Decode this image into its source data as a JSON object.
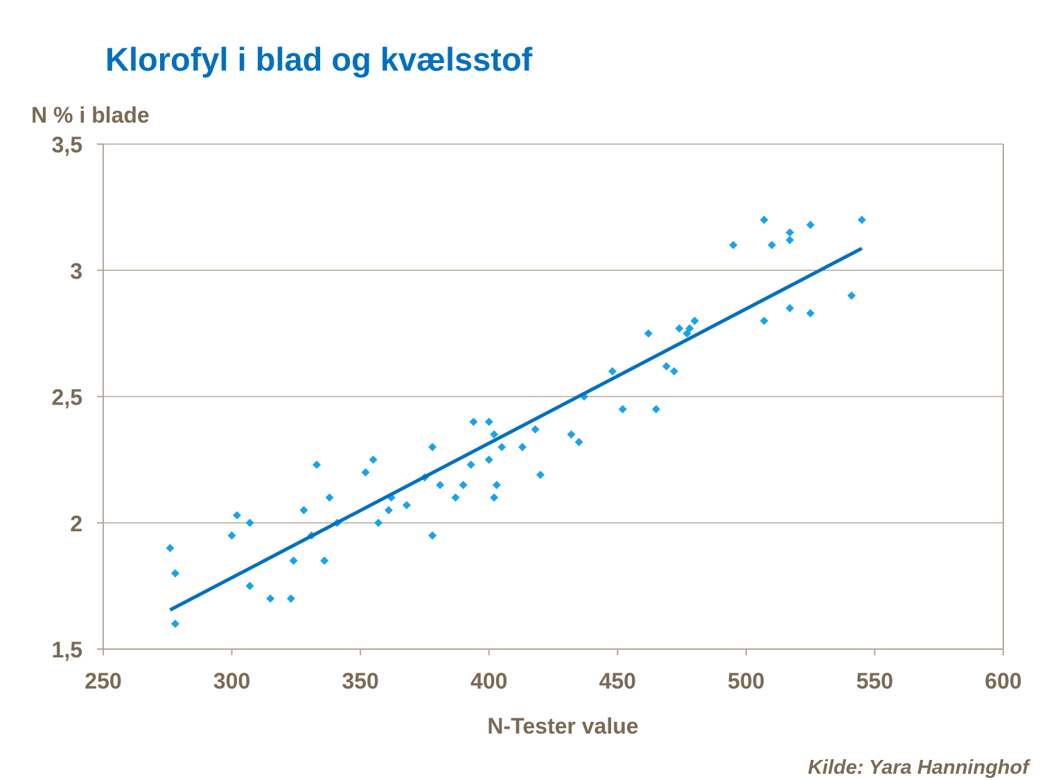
{
  "chart_data": {
    "type": "scatter",
    "title": "Klorofyl i blad og kvælsstof",
    "xlabel": "N-Tester value",
    "ylabel": "N % i blade",
    "source": "Kilde:  Yara Hanninghof",
    "xlim": [
      250,
      600
    ],
    "ylim": [
      1.5,
      3.5
    ],
    "xticks": [
      250,
      300,
      350,
      400,
      450,
      500,
      550,
      600
    ],
    "xtick_labels": [
      "250",
      "300",
      "350",
      "400",
      "450",
      "500",
      "550",
      "600"
    ],
    "yticks": [
      1.5,
      2,
      2.5,
      3,
      3.5
    ],
    "ytick_labels": [
      "1,5",
      "2",
      "2,5",
      "3",
      "3,5"
    ],
    "grid": "horizontal",
    "colors": {
      "points": "#1aa3e8",
      "trendline": "#0070c0",
      "axis": "#b3a898",
      "title": "#0070c0",
      "text": "#7a6a55"
    },
    "points": [
      [
        276,
        1.9
      ],
      [
        278,
        1.8
      ],
      [
        278,
        1.6
      ],
      [
        300,
        1.95
      ],
      [
        302,
        2.03
      ],
      [
        307,
        2.0
      ],
      [
        307,
        1.75
      ],
      [
        315,
        1.7
      ],
      [
        323,
        1.7
      ],
      [
        324,
        1.85
      ],
      [
        328,
        2.05
      ],
      [
        331,
        1.95
      ],
      [
        333,
        2.23
      ],
      [
        336,
        1.85
      ],
      [
        338,
        2.1
      ],
      [
        341,
        2.0
      ],
      [
        352,
        2.2
      ],
      [
        355,
        2.25
      ],
      [
        357,
        2.0
      ],
      [
        361,
        2.05
      ],
      [
        362,
        2.1
      ],
      [
        368,
        2.07
      ],
      [
        375,
        2.18
      ],
      [
        378,
        2.3
      ],
      [
        378,
        1.95
      ],
      [
        381,
        2.15
      ],
      [
        387,
        2.1
      ],
      [
        390,
        2.15
      ],
      [
        393,
        2.23
      ],
      [
        394,
        2.4
      ],
      [
        400,
        2.4
      ],
      [
        400,
        2.25
      ],
      [
        402,
        2.35
      ],
      [
        402,
        2.1
      ],
      [
        403,
        2.15
      ],
      [
        405,
        2.3
      ],
      [
        413,
        2.3
      ],
      [
        418,
        2.37
      ],
      [
        420,
        2.19
      ],
      [
        432,
        2.35
      ],
      [
        435,
        2.32
      ],
      [
        437,
        2.5
      ],
      [
        448,
        2.6
      ],
      [
        452,
        2.45
      ],
      [
        462,
        2.75
      ],
      [
        465,
        2.45
      ],
      [
        469,
        2.62
      ],
      [
        472,
        2.6
      ],
      [
        474,
        2.77
      ],
      [
        477,
        2.75
      ],
      [
        478,
        2.77
      ],
      [
        480,
        2.8
      ],
      [
        495,
        3.1
      ],
      [
        507,
        3.2
      ],
      [
        507,
        2.8
      ],
      [
        510,
        3.1
      ],
      [
        517,
        3.15
      ],
      [
        517,
        3.12
      ],
      [
        517,
        2.85
      ],
      [
        525,
        3.18
      ],
      [
        525,
        2.83
      ],
      [
        541,
        2.9
      ],
      [
        545,
        3.2
      ]
    ],
    "trendline": {
      "x": [
        276,
        545
      ],
      "y": [
        1.655,
        3.087
      ]
    }
  }
}
